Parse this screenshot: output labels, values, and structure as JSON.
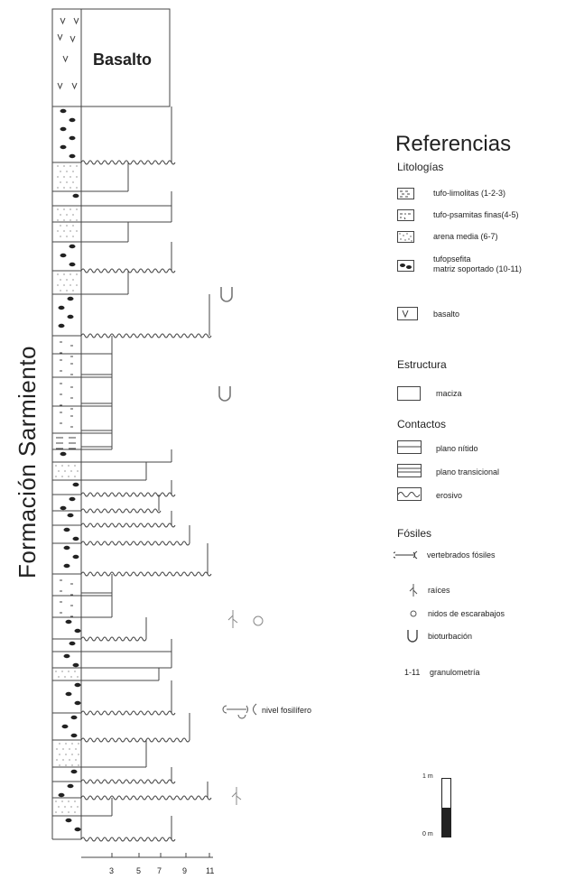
{
  "formation_label": "Formación Sarmiento",
  "basalt_label": "Basalto",
  "fossil_level_label": "nivel fosilífero",
  "grain_scale_ticks": [
    "3",
    "5",
    "7",
    "9",
    "11"
  ],
  "scale_bar": {
    "top_label": "1 m",
    "bottom_label": "0 m"
  },
  "references": {
    "title": "Referencias",
    "lithology_title": "Litologías",
    "lithology_items": [
      "tufo-limolitas (1-2-3)",
      "tufo-psamitas finas(4-5)",
      "arena media (6-7)",
      "tufopsefita\nmatriz soportado (10-11)",
      "basalto"
    ],
    "structure_title": "Estructura",
    "structure_items": [
      "maciza"
    ],
    "contacts_title": "Contactos",
    "contact_items": [
      "plano nítido",
      "plano transicional",
      "erosivo"
    ],
    "fossils_title": "Fósiles",
    "fossil_items": [
      "vertebrados fósiles",
      "raíces",
      "nidos de escarabajos",
      "bioturbación",
      "granulometría"
    ],
    "granulometry_symbol": "1-11"
  },
  "colors": {
    "ink": "#222222",
    "line": "#444444"
  }
}
